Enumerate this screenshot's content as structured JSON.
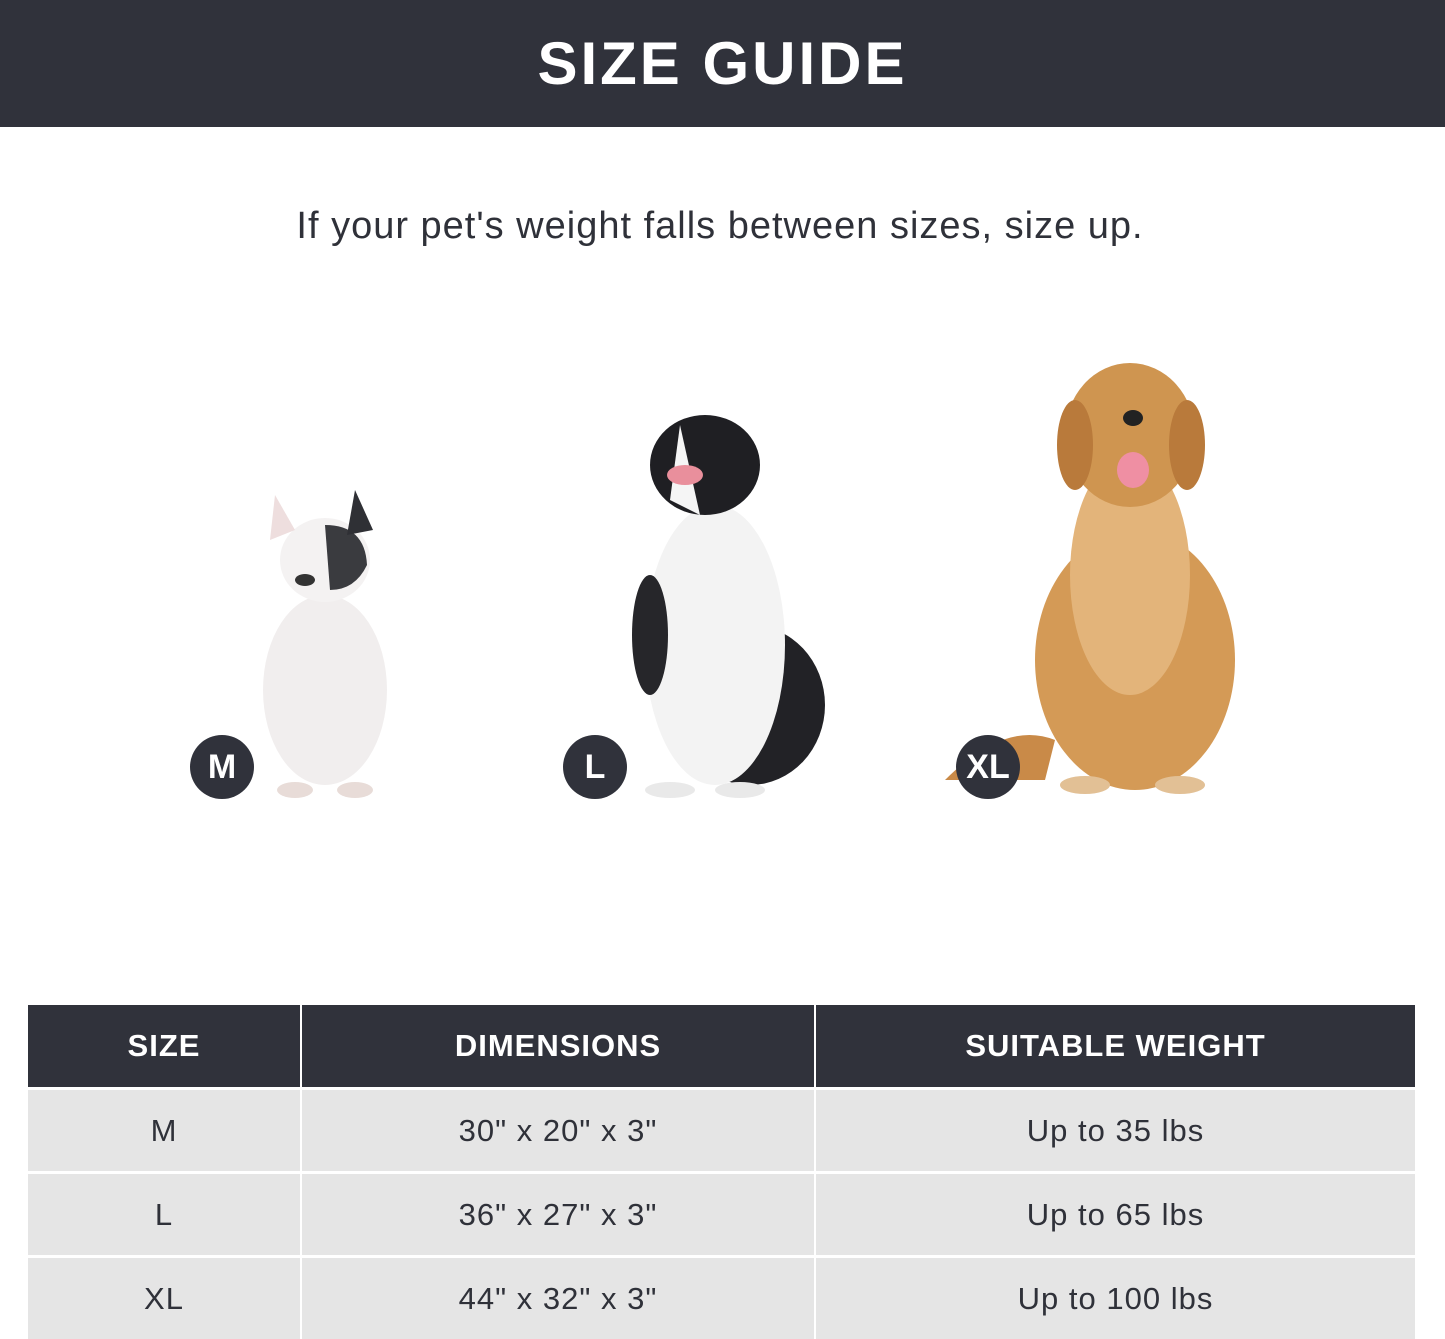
{
  "header": {
    "title": "SIZE GUIDE"
  },
  "subtitle": "If your pet's weight falls between sizes, size up.",
  "dogs": [
    {
      "size": "M",
      "breed_image": "french-bulldog"
    },
    {
      "size": "L",
      "breed_image": "border-collie"
    },
    {
      "size": "XL",
      "breed_image": "golden-retriever"
    }
  ],
  "colors": {
    "dark": "#30323b",
    "row": "#e5e5e5"
  },
  "table": {
    "headers": [
      "SIZE",
      "DIMENSIONS",
      "SUITABLE WEIGHT"
    ],
    "rows": [
      {
        "size": "M",
        "dimensions": "30\" x 20\" x 3\"",
        "weight": "Up to 35 lbs"
      },
      {
        "size": "L",
        "dimensions": "36\" x 27\" x 3\"",
        "weight": "Up to 65 lbs"
      },
      {
        "size": "XL",
        "dimensions": "44\" x 32\" x 3\"",
        "weight": "Up to 100 lbs"
      }
    ]
  }
}
